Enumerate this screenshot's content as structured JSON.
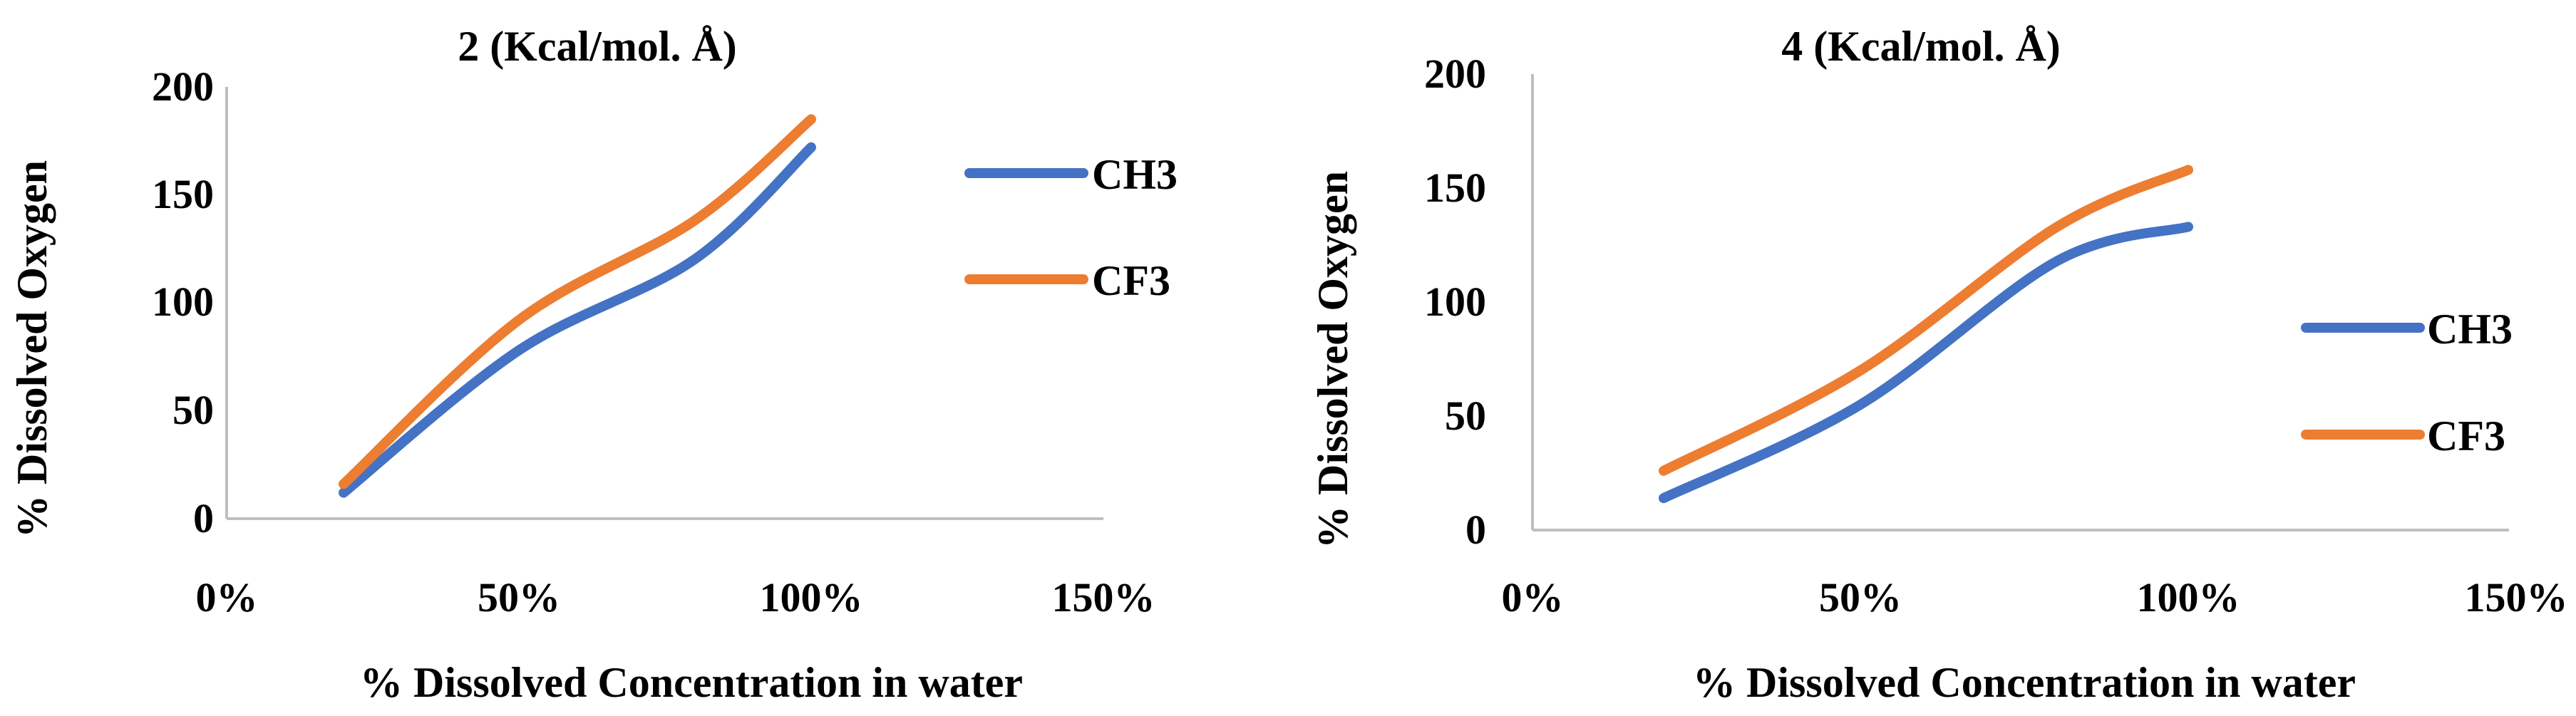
{
  "chart_data": [
    {
      "type": "line",
      "title": "2 (Kcal/mol. Å)",
      "xlabel": "% Dissolved Concentration in water",
      "ylabel": "% Dissolved Oxygen",
      "xlim": [
        0,
        1.5
      ],
      "ylim": [
        0,
        200
      ],
      "x_ticks": [
        "0%",
        "50%",
        "100%",
        "150%"
      ],
      "y_ticks": [
        "0",
        "50",
        "100",
        "150",
        "200"
      ],
      "legend_position": "right",
      "series": [
        {
          "name": "CH3",
          "color": "#4472C4",
          "x": [
            0.2,
            0.5,
            0.8,
            1.0
          ],
          "values": [
            12,
            78,
            120,
            172
          ]
        },
        {
          "name": "CF3",
          "color": "#ED7D31",
          "x": [
            0.2,
            0.5,
            0.8,
            1.0
          ],
          "values": [
            16,
            92,
            138,
            185
          ]
        }
      ]
    },
    {
      "type": "line",
      "title": "4 (Kcal/mol. Å)",
      "xlabel": "% Dissolved Concentration in water",
      "ylabel": "% Dissolved Oxygen",
      "xlim": [
        0,
        1.5
      ],
      "ylim": [
        0,
        200
      ],
      "x_ticks": [
        "0%",
        "50%",
        "100%",
        "150%"
      ],
      "y_ticks": [
        "0",
        "50",
        "100",
        "150",
        "200"
      ],
      "legend_position": "right",
      "series": [
        {
          "name": "CH3",
          "color": "#4472C4",
          "x": [
            0.2,
            0.5,
            0.8,
            1.0
          ],
          "values": [
            14,
            55,
            118,
            133
          ]
        },
        {
          "name": "CF3",
          "color": "#ED7D31",
          "x": [
            0.2,
            0.5,
            0.8,
            1.0
          ],
          "values": [
            26,
            70,
            133,
            158
          ]
        }
      ]
    }
  ]
}
